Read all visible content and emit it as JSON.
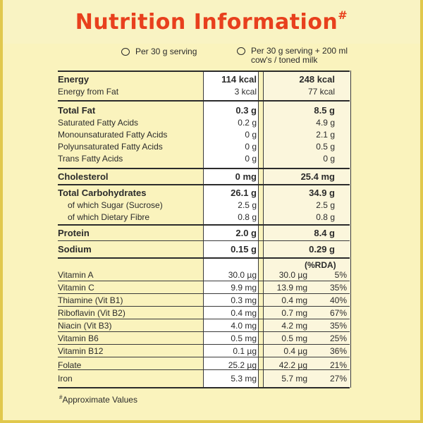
{
  "title": "Nutrition Information",
  "title_mark": "#",
  "headers": {
    "col1": "Per 30 g serving",
    "col2_line1": "Per 30 g serving + 200 ml",
    "col2_line2": "cow's / toned milk"
  },
  "rows": {
    "energy": {
      "label": "Energy",
      "v1": "114 kcal",
      "v2": "248 kcal"
    },
    "energy_fat": {
      "label": "Energy from Fat",
      "v1": "3 kcal",
      "v2": "77 kcal"
    },
    "total_fat": {
      "label": "Total Fat",
      "v1": "0.3 g",
      "v2": "8.5 g"
    },
    "sat_fat": {
      "label": "Saturated Fatty Acids",
      "v1": "0.2 g",
      "v2": "4.9 g"
    },
    "mono_fat": {
      "label": "Monounsaturated Fatty Acids",
      "v1": "0 g",
      "v2": "2.1 g"
    },
    "poly_fat": {
      "label": "Polyunsaturated Fatty Acids",
      "v1": "0 g",
      "v2": "0.5 g"
    },
    "trans_fat": {
      "label": "Trans Fatty Acids",
      "v1": "0 g",
      "v2": "0 g"
    },
    "cholesterol": {
      "label": "Cholesterol",
      "v1": "0 mg",
      "v2": "25.4 mg"
    },
    "carbs": {
      "label": "Total Carbohydrates",
      "v1": "26.1 g",
      "v2": "34.9 g"
    },
    "sugar": {
      "label": "of which Sugar (Sucrose)",
      "v1": "2.5 g",
      "v2": "2.5 g"
    },
    "fibre": {
      "label": "of which Dietary Fibre",
      "v1": "0.8 g",
      "v2": "0.8 g"
    },
    "protein": {
      "label": "Protein",
      "v1": "2.0 g",
      "v2": "8.4 g"
    },
    "sodium": {
      "label": "Sodium",
      "v1": "0.15 g",
      "v2": "0.29 g"
    }
  },
  "rda_label": "(%RDA)",
  "vitamins": [
    {
      "label": "Vitamin A",
      "v1": "30.0 µg",
      "v2": "30.0 µg",
      "pct": "5%"
    },
    {
      "label": "Vitamin C",
      "v1": "9.9 mg",
      "v2": "13.9 mg",
      "pct": "35%"
    },
    {
      "label": "Thiamine (Vit B1)",
      "v1": "0.3 mg",
      "v2": "0.4 mg",
      "pct": "40%"
    },
    {
      "label": "Riboflavin (Vit B2)",
      "v1": "0.4 mg",
      "v2": "0.7 mg",
      "pct": "67%"
    },
    {
      "label": "Niacin (Vit B3)",
      "v1": "4.0 mg",
      "v2": "4.2 mg",
      "pct": "35%"
    },
    {
      "label": "Vitamin B6",
      "v1": "0.5 mg",
      "v2": "0.5 mg",
      "pct": "25%"
    },
    {
      "label": "Vitamin B12",
      "v1": "0.1 µg",
      "v2": "0.4 µg",
      "pct": "36%"
    },
    {
      "label": "Folate",
      "v1": "25.2 µg",
      "v2": "42.2 µg",
      "pct": "21%"
    },
    {
      "label": "Iron",
      "v1": "5.3 mg",
      "v2": "5.7 mg",
      "pct": "27%"
    }
  ],
  "footnote_mark": "#",
  "footnote": "Approximate Values",
  "colors": {
    "title": "#e8401d",
    "panel": "#faf3bd",
    "border": "#e1c84d"
  }
}
